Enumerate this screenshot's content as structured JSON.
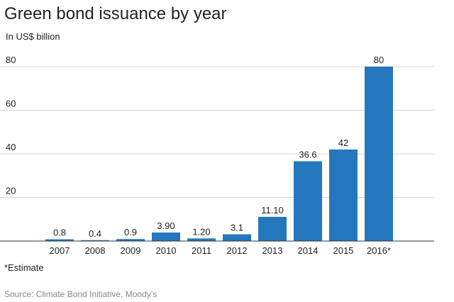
{
  "chart_data": {
    "type": "bar",
    "title": "Green bond issuance by year",
    "subtitle": "In US$ billion",
    "categories": [
      "2007",
      "2008",
      "2009",
      "2010",
      "2011",
      "2012",
      "2013",
      "2014",
      "2015",
      "2016*"
    ],
    "values": [
      0.8,
      0.4,
      0.9,
      3.9,
      1.2,
      3.1,
      11.1,
      36.6,
      42,
      80
    ],
    "value_labels": [
      "0.8",
      "0.4",
      "0.9",
      "3.90",
      "1.20",
      "3.1",
      "11.10",
      "36.6",
      "42",
      "80"
    ],
    "y_ticks": [
      "20",
      "40",
      "60",
      "80"
    ],
    "ylim": [
      0,
      80
    ],
    "grid": true,
    "bar_color": "#2577bd",
    "footnote": "*Estimate",
    "source": "Source: Climate Bond Initiative, Moody’s"
  }
}
